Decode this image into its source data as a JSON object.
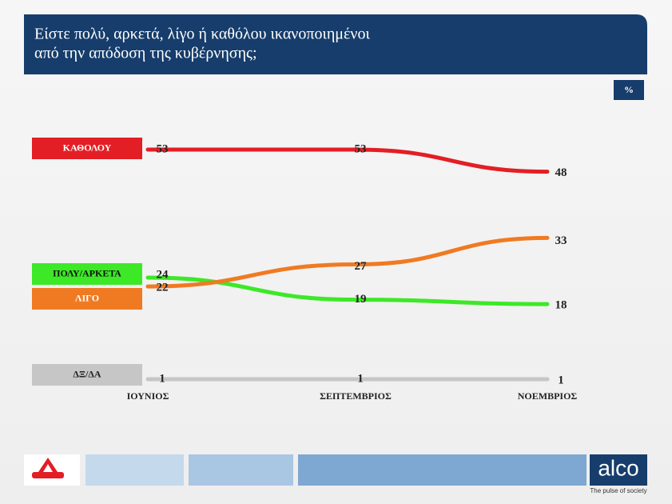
{
  "chart_data": {
    "type": "line",
    "title": [
      "Είστε πολύ, αρκετά, λίγο ή καθόλου ικανοποιημένοι",
      "από την απόδοση της κυβέρνησης;"
    ],
    "unit": "%",
    "categories": [
      "ΙΟΥΝΙΟΣ",
      "ΣΕΠΤΕΜΒΡΙΟΣ",
      "ΝΟΕΜΒΡΙΟΣ"
    ],
    "series": [
      {
        "name": "ΚΑΘΟΛΟΥ",
        "color": "#e31e24",
        "values": [
          53,
          53,
          48
        ]
      },
      {
        "name": "ΠΟΛΥ/ΑΡΚΕΤΑ",
        "color": "#3de827",
        "values": [
          24,
          19,
          18
        ]
      },
      {
        "name": "ΛΙΓΟ",
        "color": "#f07a22",
        "values": [
          22,
          27,
          33
        ]
      },
      {
        "name": "ΔΞ/ΔΑ",
        "color": "#c6c6c6",
        "values": [
          1,
          1,
          1
        ]
      }
    ],
    "brand": "alco",
    "tagline": "The pulse of society"
  }
}
